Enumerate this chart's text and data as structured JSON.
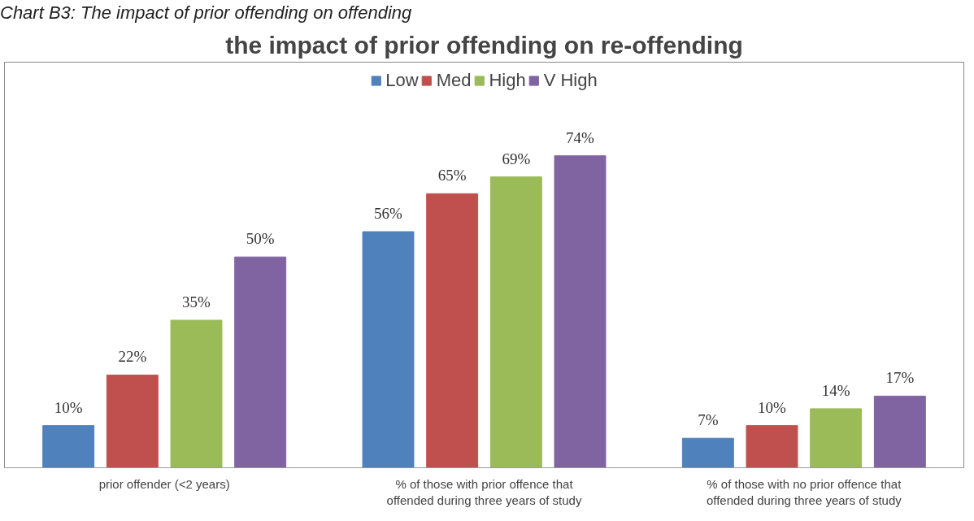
{
  "chart_data": {
    "type": "bar",
    "title": "the impact of prior offending on re-offending",
    "annotations": [
      "Chart B3: The impact of prior offending on offending"
    ],
    "categories": [
      "prior offender (<2 years)",
      "% of those with prior offence that offended during three years of study",
      "% of those with no prior offence that offended during three years of study"
    ],
    "series": [
      {
        "name": "Low",
        "color": "#4f81bd",
        "values": [
          10,
          56,
          7
        ],
        "value_labels": [
          "10%",
          "56%",
          "7%"
        ]
      },
      {
        "name": "Med",
        "color": "#c0504d",
        "values": [
          22,
          65,
          10
        ],
        "value_labels": [
          "22%",
          "65%",
          "10%"
        ]
      },
      {
        "name": "High",
        "color": "#9bbb59",
        "values": [
          35,
          69,
          14
        ],
        "value_labels": [
          "35%",
          "69%",
          "14%"
        ]
      },
      {
        "name": "V High",
        "color": "#8064a2",
        "values": [
          50,
          74,
          17
        ],
        "value_labels": [
          "50%",
          "74%",
          "17%"
        ]
      }
    ],
    "legend": "top"
  }
}
